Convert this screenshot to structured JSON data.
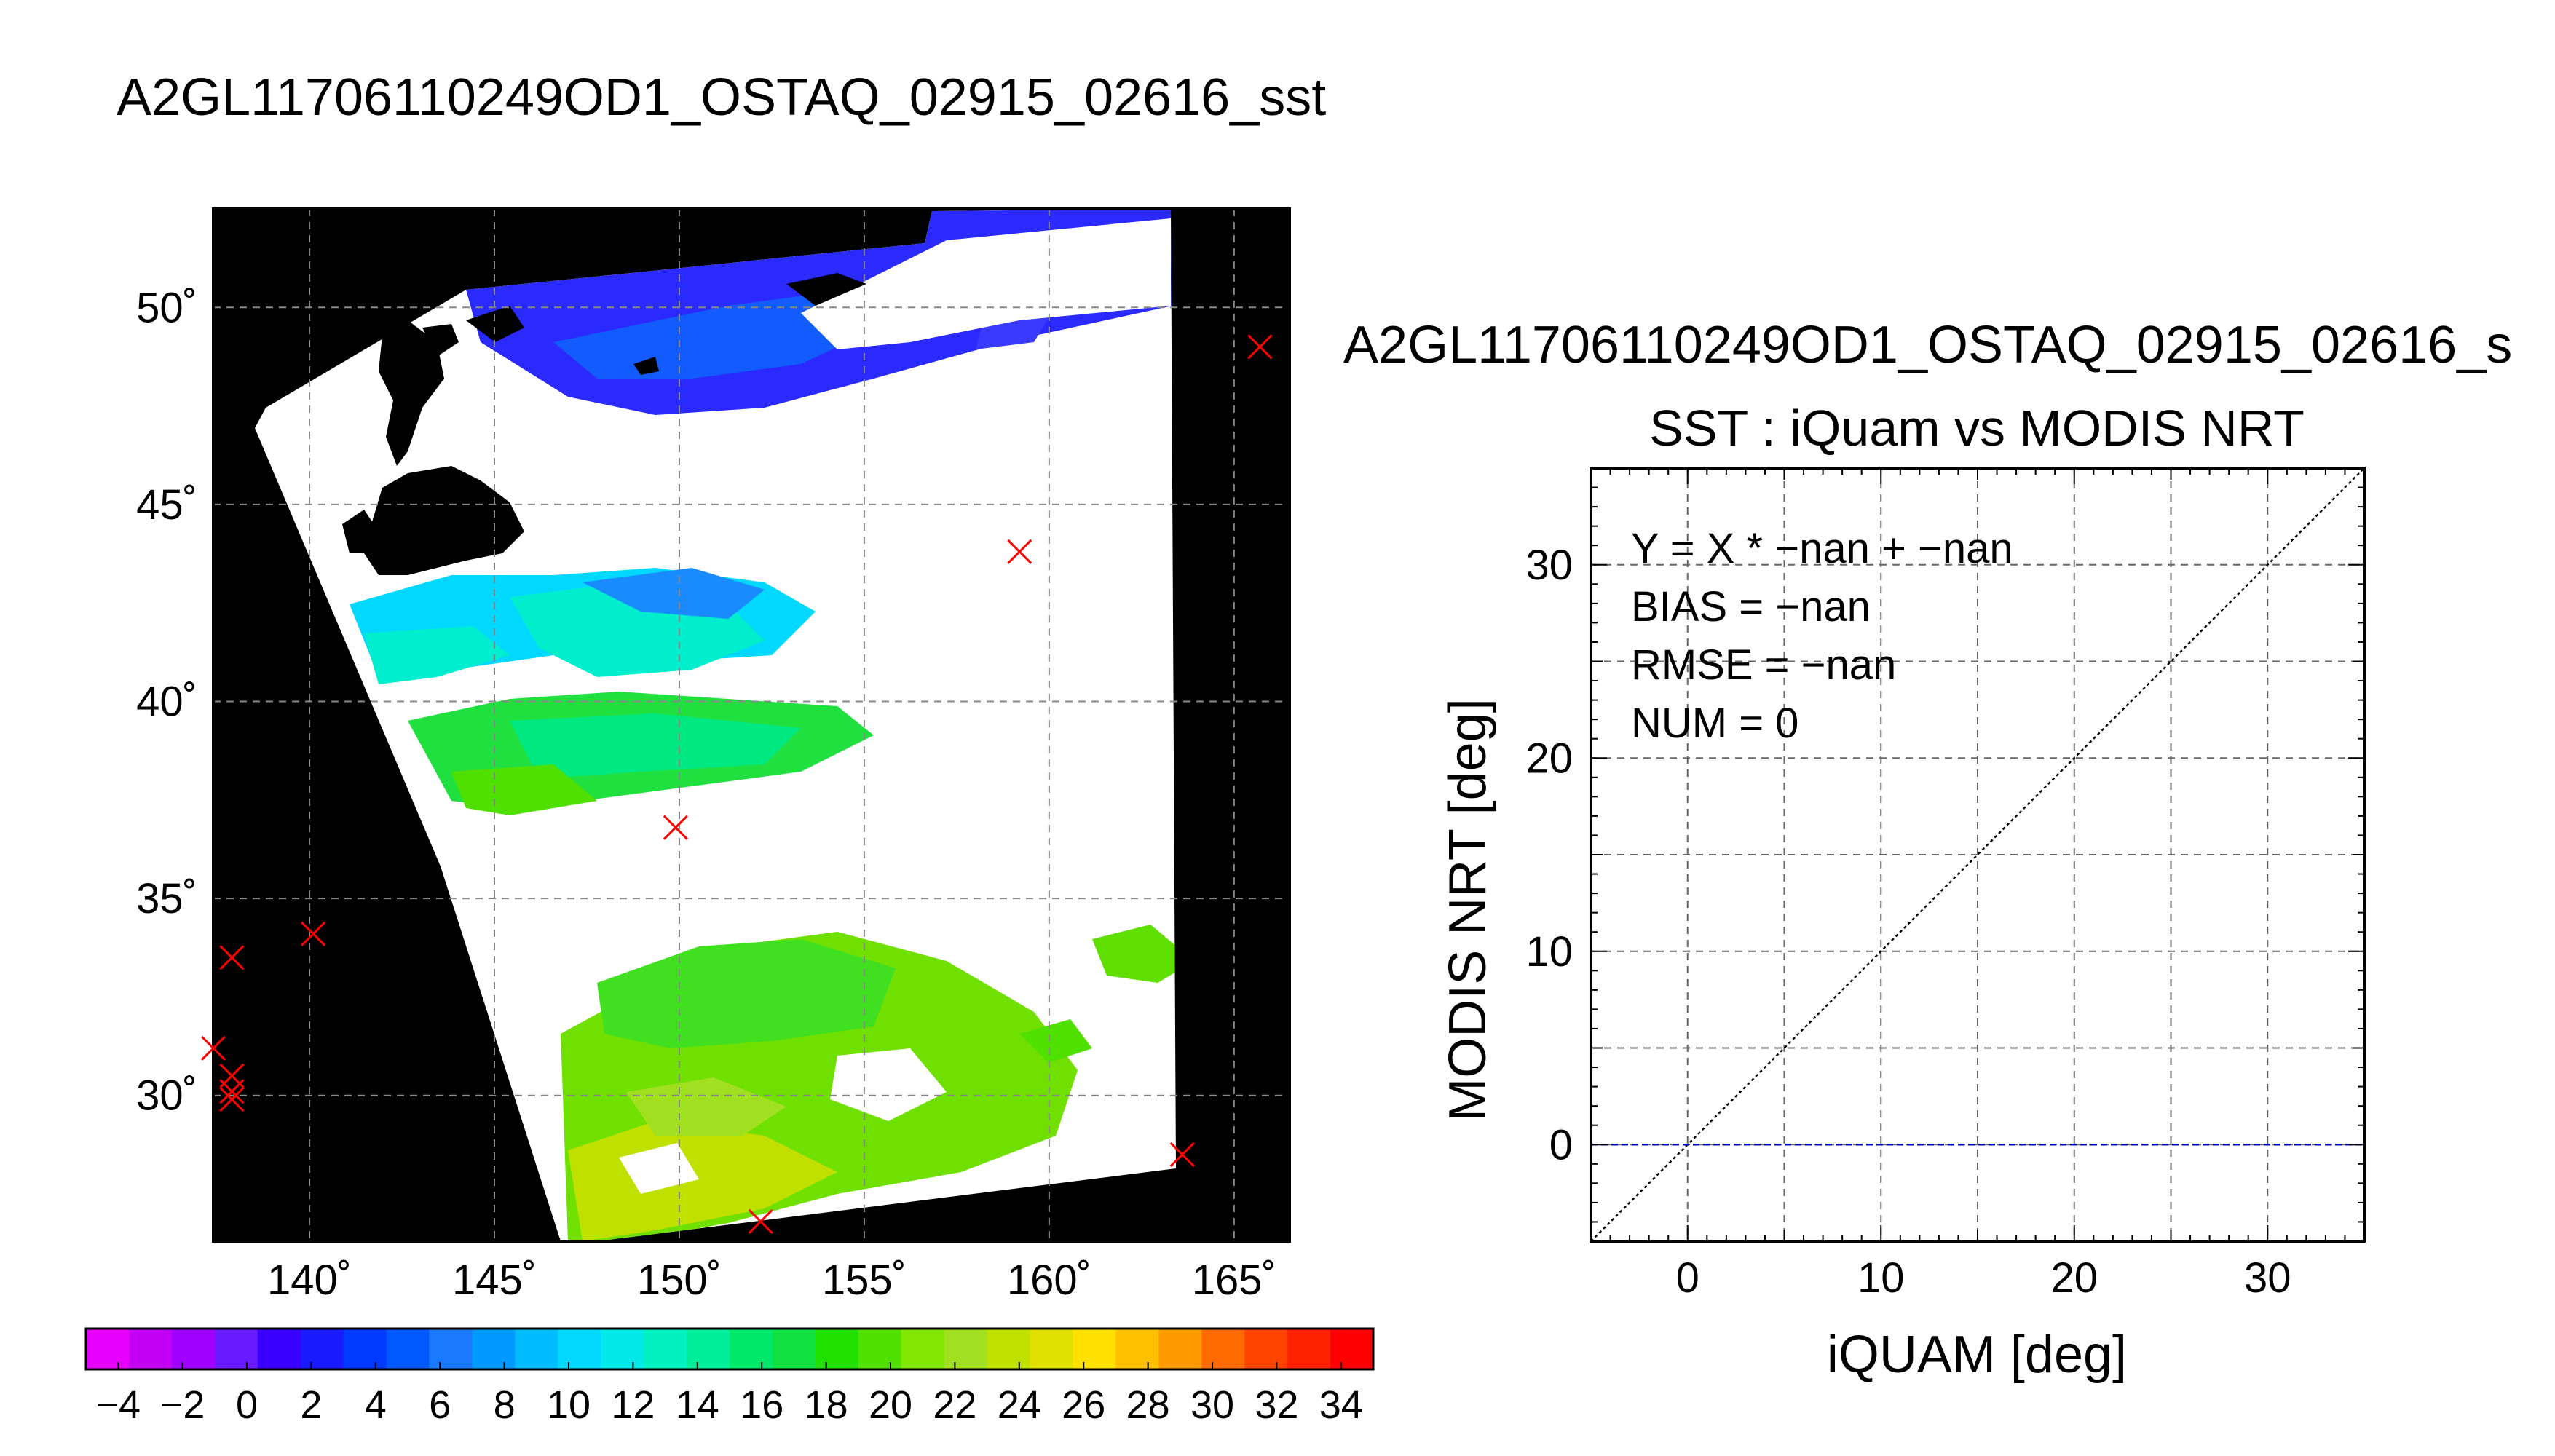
{
  "map": {
    "title": "A2GL11706110249OD1_OSTAQ_02915_02616_sst",
    "lon_ticks": [
      "140˚",
      "145˚",
      "150˚",
      "155˚",
      "160˚",
      "165˚"
    ],
    "lat_ticks": [
      "50˚",
      "45˚",
      "40˚",
      "35˚",
      "30˚"
    ],
    "lon_range": [
      137.4,
      166.5
    ],
    "lat_range": [
      26.3,
      52.5
    ],
    "markers_lonlat": [
      [
        165.7,
        49.0
      ],
      [
        159.2,
        43.8
      ],
      [
        149.9,
        36.8
      ],
      [
        140.1,
        34.1
      ],
      [
        137.9,
        33.5
      ],
      [
        137.4,
        31.2
      ],
      [
        137.9,
        30.5
      ],
      [
        137.9,
        30.1
      ],
      [
        137.9,
        29.9
      ],
      [
        163.6,
        28.5
      ],
      [
        152.2,
        26.8
      ]
    ],
    "colors": {
      "land": "#000000",
      "cloud": "#ffffff",
      "marker": "#ff0000"
    }
  },
  "colorbar": {
    "labels": [
      "−4",
      "−2",
      "0",
      "2",
      "4",
      "6",
      "8",
      "10",
      "12",
      "14",
      "16",
      "18",
      "20",
      "22",
      "24",
      "26",
      "28",
      "30",
      "32",
      "34"
    ],
    "min": -5,
    "max": 35,
    "colors": [
      "#e800ff",
      "#c400f4",
      "#a000ff",
      "#6a1aff",
      "#3a00ff",
      "#1a1aff",
      "#0039ff",
      "#0059ff",
      "#1a7aff",
      "#0099ff",
      "#00bbff",
      "#00d8ff",
      "#00e8e8",
      "#00f0c0",
      "#00ee99",
      "#00e86a",
      "#10e040",
      "#20e000",
      "#50e000",
      "#80e800",
      "#a0e020",
      "#c0e000",
      "#e0e000",
      "#ffe000",
      "#ffc000",
      "#ff9900",
      "#ff6a00",
      "#ff4400",
      "#ff2200",
      "#ff0000"
    ]
  },
  "chart_data": {
    "type": "scatter",
    "header": "A2GL11706110249OD1_OSTAQ_02915_02616_s",
    "title": "SST : iQuam vs MODIS NRT",
    "xlabel": "iQUAM [deg]",
    "ylabel": "MODIS NRT [deg]",
    "xlim": [
      -5,
      35
    ],
    "ylim": [
      -5,
      35
    ],
    "xticks": [
      0,
      10,
      20,
      30
    ],
    "yticks": [
      0,
      10,
      20,
      30
    ],
    "grid": true,
    "annotations": [
      "Y = X * −nan + −nan",
      "BIAS = −nan",
      "RMSE = −nan",
      "NUM = 0"
    ],
    "series": [
      {
        "type": "line",
        "style": "dotted",
        "color": "#000000",
        "x": [
          -5,
          35
        ],
        "y": [
          -5,
          35
        ]
      },
      {
        "type": "line",
        "style": "dashed",
        "color": "#0000cc",
        "x": [
          -5,
          35
        ],
        "y": [
          0,
          0
        ]
      }
    ],
    "points": []
  }
}
